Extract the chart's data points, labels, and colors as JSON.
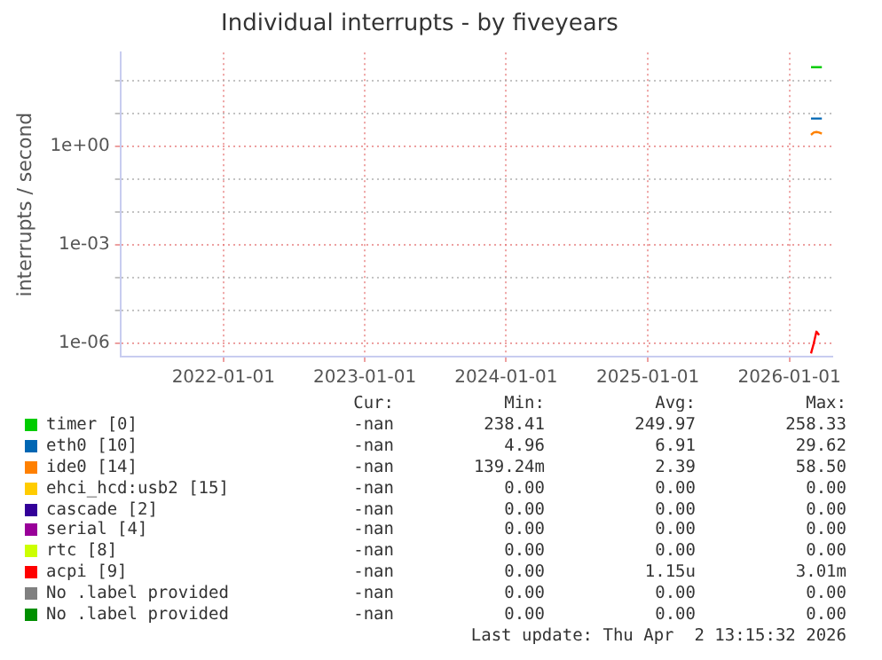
{
  "chart_data": {
    "type": "line",
    "title": "Individual interrupts - by fiveyears",
    "ylabel": "interrupts / second",
    "log": "y",
    "grid": true,
    "legend": "bottom",
    "marker": "none",
    "line_style": "solid",
    "x": [
      "2026-02-26",
      "2026-03-05",
      "2026-03-12",
      "2026-03-19",
      "2026-03-26"
    ],
    "xlim": [
      "2021-04-10",
      "2026-04-22"
    ],
    "xticks": [
      "2022-01-01",
      "2023-01-01",
      "2024-01-01",
      "2025-01-01",
      "2026-01-01"
    ],
    "ylim": [
      4e-07,
      700
    ],
    "yticks": [
      {
        "value": 1e-06,
        "label": "1e-06"
      },
      {
        "value": 1e-05,
        "label": null
      },
      {
        "value": 0.0001,
        "label": null
      },
      {
        "value": 0.001,
        "label": "1e-03"
      },
      {
        "value": 0.01,
        "label": null
      },
      {
        "value": 0.1,
        "label": null
      },
      {
        "value": 1,
        "label": "1e+00"
      },
      {
        "value": 10,
        "label": null
      },
      {
        "value": 100,
        "label": null
      }
    ],
    "series": [
      {
        "name": "timer [0]",
        "color": "#00cc00",
        "values": [
          250,
          250,
          250,
          250,
          250
        ]
      },
      {
        "name": "eth0 [10]",
        "color": "#0066b3",
        "values": [
          6.9,
          6.9,
          6.9,
          6.9,
          6.9
        ]
      },
      {
        "name": "ide0 [14]",
        "color": "#ff8000",
        "values": [
          2.2,
          2.6,
          2.7,
          2.6,
          2.4
        ]
      },
      {
        "name": "ehci_hcd:usb2 [15]",
        "color": "#ffcc00",
        "values": [
          null,
          null,
          null,
          null,
          null
        ]
      },
      {
        "name": "cascade [2]",
        "color": "#330099",
        "values": [
          null,
          null,
          null,
          null,
          null
        ]
      },
      {
        "name": "serial [4]",
        "color": "#990099",
        "values": [
          null,
          null,
          null,
          null,
          null
        ]
      },
      {
        "name": "rtc [8]",
        "color": "#ccff00",
        "values": [
          null,
          null,
          null,
          null,
          null
        ]
      },
      {
        "name": "acpi [9]",
        "color": "#ff0000",
        "values": [
          5e-07,
          1e-06,
          2.3e-06,
          1.8e-06,
          null
        ]
      },
      {
        "name": "No .label provided",
        "color": "#808080",
        "values": [
          null,
          null,
          null,
          null,
          null
        ]
      },
      {
        "name": "No .label provided",
        "color": "#008f00",
        "values": [
          null,
          null,
          null,
          null,
          null
        ]
      }
    ],
    "annotations": [
      "Cur:",
      "Min:",
      "Avg:",
      "Max:",
      "-nan",
      "238.41",
      "249.97",
      "258.33",
      "-nan",
      "4.96",
      "6.91",
      "29.62",
      "-nan",
      "139.24m",
      "2.39",
      "58.50",
      "-nan",
      "0.00",
      "0.00",
      "0.00",
      "-nan",
      "0.00",
      "0.00",
      "0.00",
      "-nan",
      "0.00",
      "0.00",
      "0.00",
      "-nan",
      "0.00",
      "0.00",
      "0.00",
      "-nan",
      "0.00",
      "1.15u",
      "3.01m",
      "-nan",
      "0.00",
      "0.00",
      "0.00",
      "-nan",
      "0.00",
      "0.00",
      "0.00",
      "Last update: Thu Apr  2 13:15:32 2026"
    ]
  }
}
